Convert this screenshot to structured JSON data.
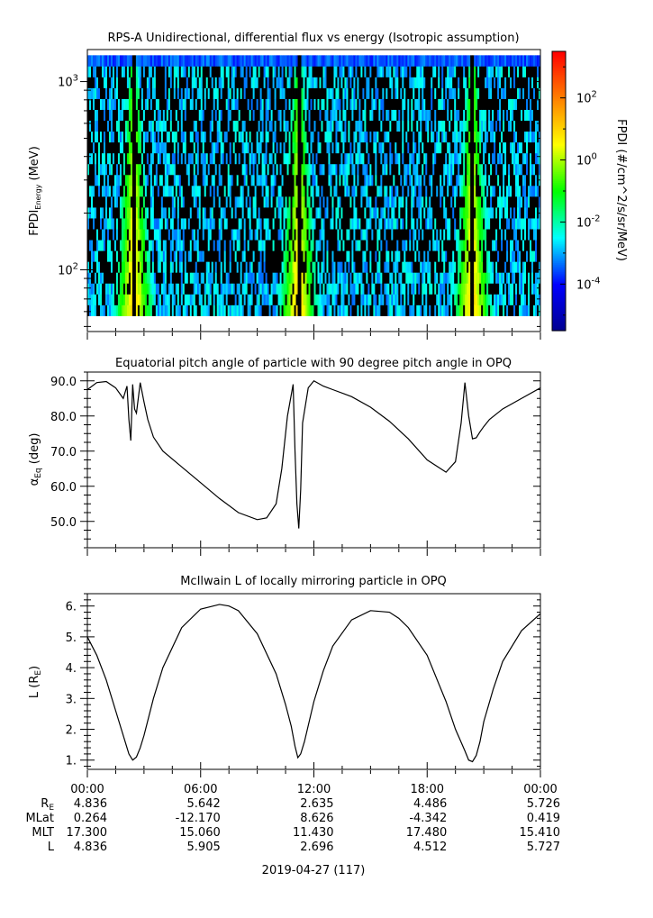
{
  "chart_data": [
    {
      "type": "heatmap",
      "title": "RPS-A Unidirectional, differential flux vs energy (Isotropic assumption)",
      "ylabel_main": "FPDI",
      "ylabel_sub": "Energy",
      "ylabel_unit": " (MeV)",
      "yscale": "log",
      "ylim": [
        47,
        1480
      ],
      "ytick_values": [
        100,
        1000
      ],
      "ytick_labels": [
        "10^2",
        "10^3"
      ],
      "energy_range": [
        57,
        1380
      ],
      "colorbar": {
        "label": "FPDI (#/cm^2/s/sr/MeV)",
        "scale": "log",
        "range": [
          -5.5,
          3.5
        ],
        "tick_values": [
          -4,
          -2,
          0,
          2
        ],
        "tick_labels": [
          "10^-4",
          "10^-2",
          "10^0",
          "10^2"
        ],
        "colors": [
          "#00008f",
          "#0000ff",
          "#00ffff",
          "#00ff00",
          "#ffff00",
          "#ff8000",
          "#ff0000"
        ]
      },
      "background_level": -2.8,
      "perigee_hours": [
        2.45,
        11.2,
        20.4
      ],
      "radiation_belt_peak": 1.3
    },
    {
      "type": "line",
      "title": "Equatorial pitch angle of particle with 90 degree pitch angle in OPQ",
      "ylabel": "α_Eq (deg)",
      "ylabel_main": "α",
      "ylabel_sub": "Eq",
      "ylabel_unit": " (deg)",
      "ylim": [
        42.5,
        92.5
      ],
      "yticks": [
        50.0,
        60.0,
        70.0,
        80.0,
        90.0
      ],
      "ytick_labels": [
        "50.0",
        "60.0",
        "70.0",
        "80.0",
        "90.0"
      ],
      "x": [
        0,
        0.5,
        1,
        1.5,
        1.9,
        2.1,
        2.2,
        2.3,
        2.4,
        2.5,
        2.6,
        2.8,
        3.0,
        3.2,
        3.5,
        4.0,
        5.0,
        6.0,
        7.0,
        8.0,
        9.0,
        9.5,
        10.0,
        10.3,
        10.6,
        10.9,
        11.0,
        11.1,
        11.2,
        11.3,
        11.4,
        11.7,
        12.0,
        12.5,
        13.0,
        14.0,
        15.0,
        16.0,
        17.0,
        18.0,
        19.0,
        19.5,
        19.8,
        20.0,
        20.2,
        20.4,
        20.6,
        20.8,
        21.0,
        21.3,
        22.0,
        23.0,
        24.0
      ],
      "y": [
        87.5,
        89.5,
        89.8,
        88.0,
        85.0,
        88.5,
        79.0,
        73.0,
        89.0,
        82.0,
        80.8,
        89.5,
        84.0,
        79.0,
        74.0,
        70.0,
        65.5,
        61.0,
        56.5,
        52.5,
        50.5,
        51.0,
        55.0,
        65.0,
        80.0,
        89.0,
        70.0,
        55.0,
        48.0,
        59.0,
        78.0,
        88.0,
        90.0,
        88.5,
        87.5,
        85.5,
        82.5,
        78.5,
        73.5,
        67.5,
        64.0,
        67.0,
        78.0,
        89.5,
        80.0,
        73.5,
        73.8,
        75.5,
        77.0,
        79.0,
        82.0,
        85.0,
        88.0
      ]
    },
    {
      "type": "line",
      "title": "McIlwain L of locally mirroring particle in OPQ",
      "ylabel": "L (R_E)",
      "ylabel_main": "L (R",
      "ylabel_sub": "E",
      "ylabel_unit": ")",
      "ylim": [
        0.7,
        6.4
      ],
      "yticks": [
        1.0,
        2.0,
        3.0,
        4.0,
        5.0,
        6.0
      ],
      "ytick_labels": [
        "1.",
        "2.",
        "3.",
        "4.",
        "5.",
        "6."
      ],
      "x": [
        0,
        0.5,
        1,
        1.5,
        2,
        2.2,
        2.4,
        2.6,
        2.8,
        3,
        3.5,
        4,
        5,
        6,
        7,
        7.5,
        8,
        9,
        10,
        10.5,
        10.8,
        11,
        11.15,
        11.3,
        11.5,
        12,
        12.5,
        13,
        14,
        15,
        16,
        16.5,
        17,
        18,
        19,
        19.5,
        20,
        20.2,
        20.4,
        20.6,
        20.8,
        21,
        21.5,
        22,
        23,
        24
      ],
      "y": [
        5.0,
        4.4,
        3.6,
        2.6,
        1.6,
        1.2,
        1.0,
        1.1,
        1.4,
        1.8,
        3.0,
        4.0,
        5.3,
        5.9,
        6.05,
        6.0,
        5.85,
        5.1,
        3.8,
        2.8,
        2.1,
        1.45,
        1.08,
        1.2,
        1.6,
        2.9,
        3.9,
        4.7,
        5.55,
        5.85,
        5.8,
        5.6,
        5.3,
        4.4,
        2.9,
        2.0,
        1.3,
        1.0,
        0.95,
        1.15,
        1.6,
        2.25,
        3.3,
        4.2,
        5.2,
        5.75
      ]
    }
  ],
  "x_axis": {
    "range_hours": [
      0,
      24
    ],
    "tick_hours": [
      0,
      6,
      12,
      18,
      24
    ],
    "tick_labels": [
      "00:00",
      "06:00",
      "12:00",
      "18:00",
      "00:00"
    ],
    "date_label": "2019-04-27 (117)"
  },
  "ephemeris": [
    {
      "label_main": "R",
      "label_sub": "E",
      "values": [
        "4.836",
        "5.642",
        "2.635",
        "4.486",
        "5.726"
      ]
    },
    {
      "label_main": "MLat",
      "label_sub": "",
      "values": [
        "0.264",
        "-12.170",
        "8.626",
        "-4.342",
        "0.419"
      ]
    },
    {
      "label_main": "MLT",
      "label_sub": "",
      "values": [
        "17.300",
        "15.060",
        "11.430",
        "17.480",
        "15.410"
      ]
    },
    {
      "label_main": "L",
      "label_sub": "",
      "values": [
        "4.836",
        "5.905",
        "2.696",
        "4.512",
        "5.727"
      ]
    }
  ]
}
